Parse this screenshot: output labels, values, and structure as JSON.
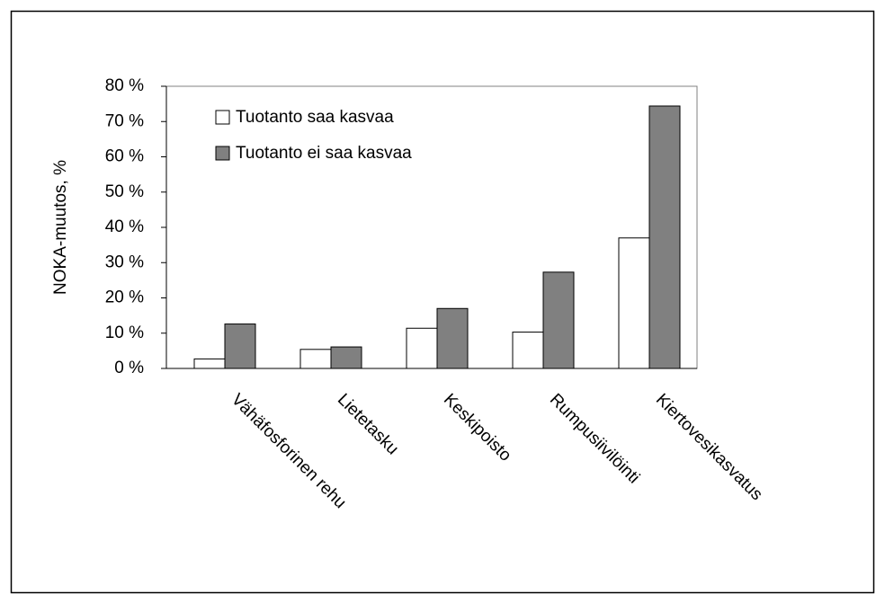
{
  "chart_data": {
    "type": "bar",
    "y_label": "NOKA-muutos, %",
    "categories": [
      "Vähäfosforinen rehu",
      "Lietetasku",
      "Keskipoisto",
      "Rumpusiivilöinti",
      "Kiertovesikasvatus"
    ],
    "series": [
      {
        "name": "Tuotanto saa kasvaa",
        "color": "#ffffff",
        "values": [
          2.7,
          5.4,
          11.4,
          10.3,
          37.0
        ]
      },
      {
        "name": "Tuotanto ei saa kasvaa",
        "color": "#808080",
        "values": [
          12.6,
          6.1,
          17.0,
          27.3,
          74.4
        ]
      }
    ],
    "ylim": [
      0,
      80
    ],
    "yticks": [
      {
        "value": 0,
        "label": "0 %"
      },
      {
        "value": 10,
        "label": "10 %"
      },
      {
        "value": 20,
        "label": "20 %"
      },
      {
        "value": 30,
        "label": "30 %"
      },
      {
        "value": 40,
        "label": "40 %"
      },
      {
        "value": 50,
        "label": "50 %"
      },
      {
        "value": 60,
        "label": "60 %"
      },
      {
        "value": 70,
        "label": "70 %"
      },
      {
        "value": 80,
        "label": "80 %"
      }
    ],
    "legend": "upper left"
  }
}
